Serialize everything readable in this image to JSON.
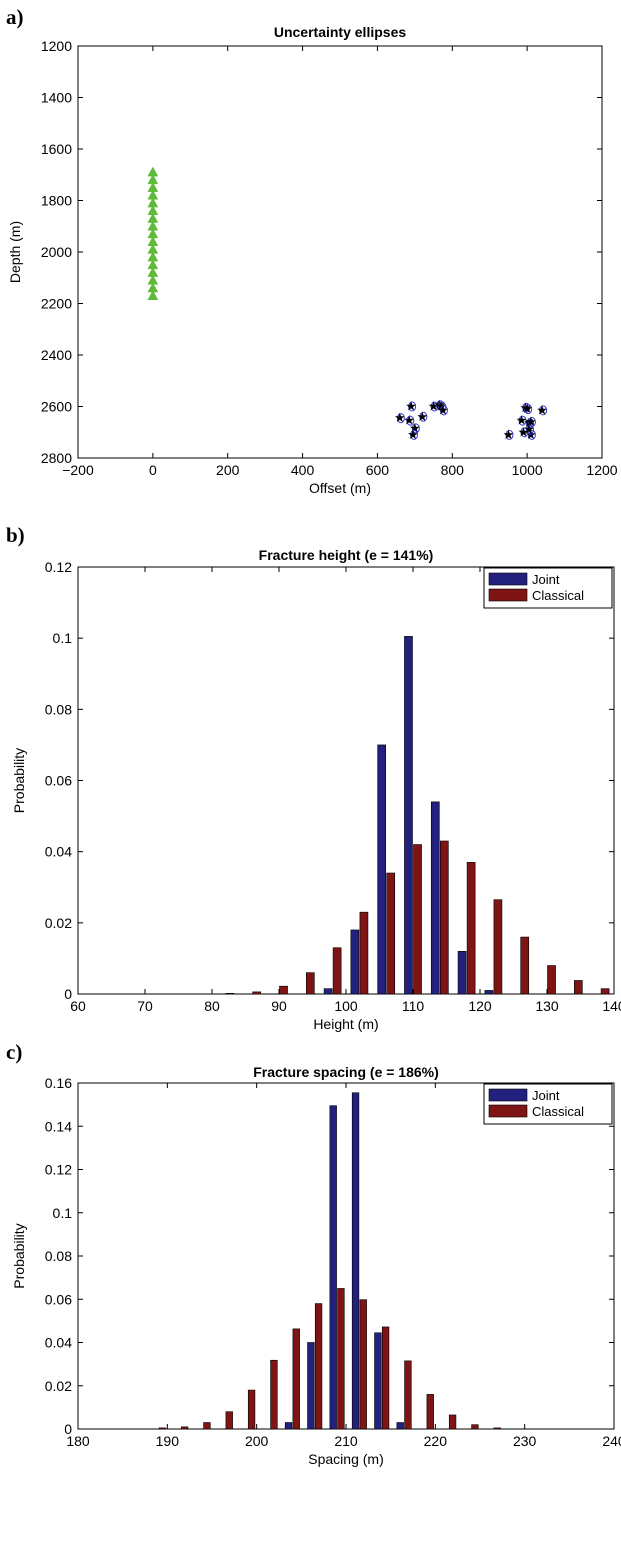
{
  "chart_data": [
    {
      "panel": "a)",
      "type": "scatter",
      "title": "Uncertainty ellipses",
      "xlabel": "Offset (m)",
      "ylabel": "Depth (m)",
      "xlim": [
        -200,
        1200
      ],
      "ylim": [
        1200,
        2800
      ],
      "y_reversed": true,
      "xticks": [
        "−200",
        "0",
        "200",
        "400",
        "600",
        "800",
        "1000",
        "1200"
      ],
      "xtick_values": [
        -200,
        0,
        200,
        400,
        600,
        800,
        1000,
        1200
      ],
      "yticks": [
        "1200",
        "1400",
        "1600",
        "1800",
        "2000",
        "2200",
        "2400",
        "2600",
        "2800"
      ],
      "ytick_values": [
        1200,
        1400,
        1600,
        1800,
        2000,
        2200,
        2400,
        2600,
        2800
      ],
      "receivers": {
        "marker": "triangle",
        "color": "#5dbb3a",
        "x": [
          0,
          0,
          0,
          0,
          0,
          0,
          0,
          0,
          0,
          0,
          0,
          0,
          0,
          0,
          0,
          0,
          0
        ],
        "y": [
          1690,
          1720,
          1750,
          1780,
          1810,
          1840,
          1870,
          1900,
          1930,
          1960,
          1990,
          2020,
          2050,
          2080,
          2110,
          2140,
          2170
        ]
      },
      "events": {
        "marker": "star",
        "color": "#e0203a",
        "ellipse_color": "#3a3ad8",
        "x": [
          690,
          660,
          685,
          700,
          720,
          750,
          765,
          770,
          775,
          695,
          950,
          985,
          995,
          1000,
          1005,
          1010,
          1010,
          990,
          1005,
          1040
        ],
        "y": [
          2600,
          2645,
          2655,
          2685,
          2640,
          2600,
          2595,
          2600,
          2615,
          2710,
          2710,
          2655,
          2605,
          2610,
          2665,
          2660,
          2710,
          2700,
          2690,
          2615
        ]
      }
    },
    {
      "panel": "b)",
      "type": "bar",
      "title": "Fracture height (e = 141%)",
      "xlabel": "Height (m)",
      "ylabel": "Probability",
      "xlim": [
        60,
        140
      ],
      "ylim": [
        0,
        0.12
      ],
      "xticks": [
        "60",
        "70",
        "80",
        "90",
        "100",
        "110",
        "120",
        "130",
        "140"
      ],
      "xtick_values": [
        60,
        70,
        80,
        90,
        100,
        110,
        120,
        130,
        140
      ],
      "yticks": [
        "0",
        "0.02",
        "0.04",
        "0.06",
        "0.08",
        "0.1",
        "0.12"
      ],
      "ytick_values": [
        0,
        0.02,
        0.04,
        0.06,
        0.08,
        0.1,
        0.12
      ],
      "legend_position": "top-right",
      "x": [
        62,
        66,
        70,
        74,
        78,
        82,
        86,
        90,
        94,
        98,
        102,
        106,
        110,
        114,
        118,
        122,
        126,
        130,
        134,
        138
      ],
      "series": [
        {
          "name": "Joint",
          "color": "#22227e",
          "values": [
            0,
            0,
            0,
            0,
            0,
            0,
            0,
            0,
            0,
            0.0015,
            0.018,
            0.07,
            0.1005,
            0.054,
            0.012,
            0.001,
            0,
            0,
            0,
            0
          ]
        },
        {
          "name": "Classical",
          "color": "#7e1414",
          "values": [
            0,
            0,
            0,
            0,
            0,
            0.0002,
            0.0006,
            0.0022,
            0.006,
            0.013,
            0.023,
            0.034,
            0.042,
            0.043,
            0.037,
            0.0265,
            0.016,
            0.008,
            0.0038,
            0.0015
          ]
        }
      ]
    },
    {
      "panel": "c)",
      "type": "bar",
      "title": "Fracture spacing (e = 186%)",
      "xlabel": "Spacing (m)",
      "ylabel": "Probability",
      "xlim": [
        180,
        240
      ],
      "ylim": [
        0,
        0.16
      ],
      "xticks": [
        "180",
        "190",
        "200",
        "210",
        "220",
        "230",
        "240"
      ],
      "xtick_values": [
        180,
        190,
        200,
        210,
        220,
        230,
        240
      ],
      "yticks": [
        "0",
        "0.02",
        "0.04",
        "0.06",
        "0.08",
        "0.1",
        "0.12",
        "0.14",
        "0.16"
      ],
      "ytick_values": [
        0,
        0.02,
        0.04,
        0.06,
        0.08,
        0.1,
        0.12,
        0.14,
        0.16
      ],
      "legend_position": "top-right",
      "x": [
        181.5,
        184,
        186.5,
        189,
        191.5,
        194,
        196.5,
        199,
        201.5,
        204,
        206.5,
        209,
        211.5,
        214,
        216.5,
        219,
        221.5,
        224,
        226.5,
        229,
        231.5,
        234,
        236.5,
        239
      ],
      "series": [
        {
          "name": "Joint",
          "color": "#22227e",
          "values": [
            0,
            0,
            0,
            0,
            0,
            0,
            0,
            0,
            0,
            0.003,
            0.04,
            0.1495,
            0.1555,
            0.0445,
            0.003,
            0,
            0,
            0,
            0,
            0,
            0,
            0,
            0,
            0
          ]
        },
        {
          "name": "Classical",
          "color": "#7e1414",
          "values": [
            0,
            0,
            0,
            0.0005,
            0.001,
            0.003,
            0.008,
            0.018,
            0.0318,
            0.0463,
            0.058,
            0.065,
            0.0598,
            0.0472,
            0.0315,
            0.016,
            0.0065,
            0.002,
            0.0005,
            0,
            0,
            0,
            0,
            0
          ]
        }
      ]
    }
  ]
}
